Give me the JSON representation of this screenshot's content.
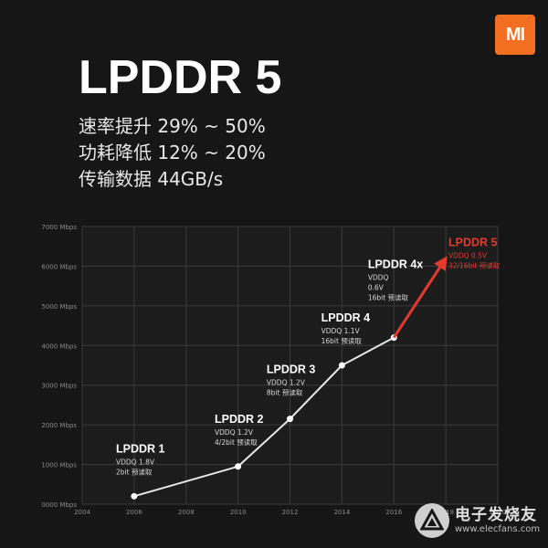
{
  "brand": {
    "logo_text": "MI",
    "color": "#f26e21"
  },
  "title": "LPDDR 5",
  "specs": [
    "速率提升 29% ~ 50%",
    "功耗降低 12% ~ 20%",
    "传输数据 44GB/s"
  ],
  "watermark": {
    "cn": "电子发烧友",
    "en": "www.elecfans.com"
  },
  "chart_data": {
    "type": "line",
    "title": "",
    "xlabel": "",
    "ylabel": "",
    "xlim": [
      2004,
      2020
    ],
    "ylim": [
      0,
      7000
    ],
    "x_ticks": [
      "2004",
      "2006",
      "2008",
      "2010",
      "2012",
      "2014",
      "2016",
      "2018",
      "2020"
    ],
    "y_ticks": [
      "0000 Mbps",
      "1000 Mbps",
      "2000 Mbps",
      "3000 Mbps",
      "4000 Mbps",
      "5000 Mbps",
      "6000 Mbps",
      "7000 Mbps"
    ],
    "grid": true,
    "series": [
      {
        "color": "#e6e6e6",
        "points": [
          {
            "x": 2006,
            "y": 200
          },
          {
            "x": 2010,
            "y": 950
          },
          {
            "x": 2012,
            "y": 2150
          },
          {
            "x": 2014,
            "y": 3500
          },
          {
            "x": 2016,
            "y": 4200
          }
        ]
      },
      {
        "color": "#e23b2e",
        "points": [
          {
            "x": 2016,
            "y": 4200
          },
          {
            "x": 2018,
            "y": 6200
          }
        ]
      }
    ],
    "annotations": [
      {
        "name": "LPDDR 1",
        "lines": [
          "VDDQ 1.8V",
          "2bit 预读取"
        ],
        "x": 2005.3,
        "y": 1300,
        "color": "#ffffff"
      },
      {
        "name": "LPDDR 2",
        "lines": [
          "VDDQ 1.2V",
          "4/2bit 预读取"
        ],
        "x": 2009.1,
        "y": 2050,
        "color": "#ffffff"
      },
      {
        "name": "LPDDR 3",
        "lines": [
          "VDDQ 1.2V",
          "8bit 预读取"
        ],
        "x": 2011.1,
        "y": 3300,
        "color": "#ffffff"
      },
      {
        "name": "LPDDR 4",
        "lines": [
          "VDDQ 1.1V",
          "16bit 预读取"
        ],
        "x": 2013.2,
        "y": 4600,
        "color": "#ffffff"
      },
      {
        "name": "LPDDR 4x",
        "lines": [
          "VDDQ",
          "0.6V",
          "16bit 预读取"
        ],
        "x": 2015.0,
        "y": 5950,
        "color": "#ffffff"
      },
      {
        "name": "LPDDR 5",
        "lines": [
          "VDDQ 0.5V",
          "32/16bit 预读取"
        ],
        "x": 2018.1,
        "y": 6500,
        "color": "#e23b2e"
      }
    ]
  }
}
